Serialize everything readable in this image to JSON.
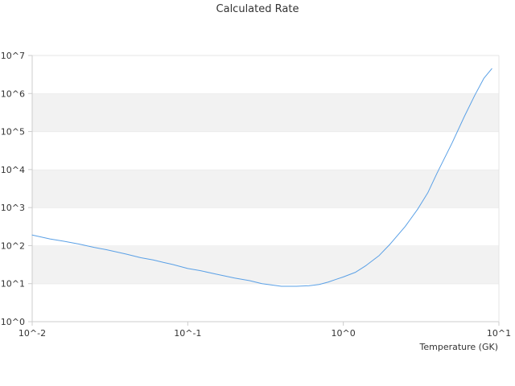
{
  "chart_data": {
    "type": "line",
    "title": "Calculated Rate",
    "xlabel": "Temperature (GK)",
    "ylabel": "",
    "x_scale": "log",
    "y_scale": "log",
    "xlim": [
      0.01,
      10
    ],
    "ylim": [
      1,
      10000000
    ],
    "x_ticks": [
      {
        "value": 0.01,
        "label": "10^-2"
      },
      {
        "value": 0.1,
        "label": "10^-1"
      },
      {
        "value": 1,
        "label": "10^0"
      },
      {
        "value": 10,
        "label": "10^1"
      }
    ],
    "y_ticks": [
      {
        "value": 1,
        "label": "10^0"
      },
      {
        "value": 10,
        "label": "10^1"
      },
      {
        "value": 100,
        "label": "10^2"
      },
      {
        "value": 1000,
        "label": "10^3"
      },
      {
        "value": 10000,
        "label": "10^4"
      },
      {
        "value": 100000,
        "label": "10^5"
      },
      {
        "value": 1000000,
        "label": "10^6"
      },
      {
        "value": 10000000,
        "label": "10^7"
      }
    ],
    "grid": "alternating horizontal bands",
    "legend": "none",
    "colors": {
      "line": "#5aa0e6",
      "band": "#f2f2f2",
      "axis": "#cccccc",
      "text": "#333333"
    },
    "series": [
      {
        "x": [
          0.01,
          0.013,
          0.016,
          0.02,
          0.025,
          0.03,
          0.04,
          0.05,
          0.06,
          0.07,
          0.08,
          0.1,
          0.12,
          0.15,
          0.2,
          0.25,
          0.3,
          0.4,
          0.5,
          0.6,
          0.7,
          0.8,
          0.9,
          1.0,
          1.2,
          1.4,
          1.7,
          2.0,
          2.5,
          3.0,
          3.5,
          4.0,
          5.0,
          6.0,
          7.0,
          8.0,
          9.0
        ],
        "y": [
          190,
          150,
          130,
          110,
          90,
          78,
          60,
          48,
          42,
          36,
          32,
          25,
          22,
          18,
          14,
          12,
          10,
          8.5,
          8.5,
          8.8,
          9.5,
          11,
          13,
          15,
          20,
          30,
          55,
          110,
          320,
          900,
          2500,
          8000,
          50000,
          250000,
          900000,
          2500000,
          4500000
        ]
      }
    ]
  }
}
